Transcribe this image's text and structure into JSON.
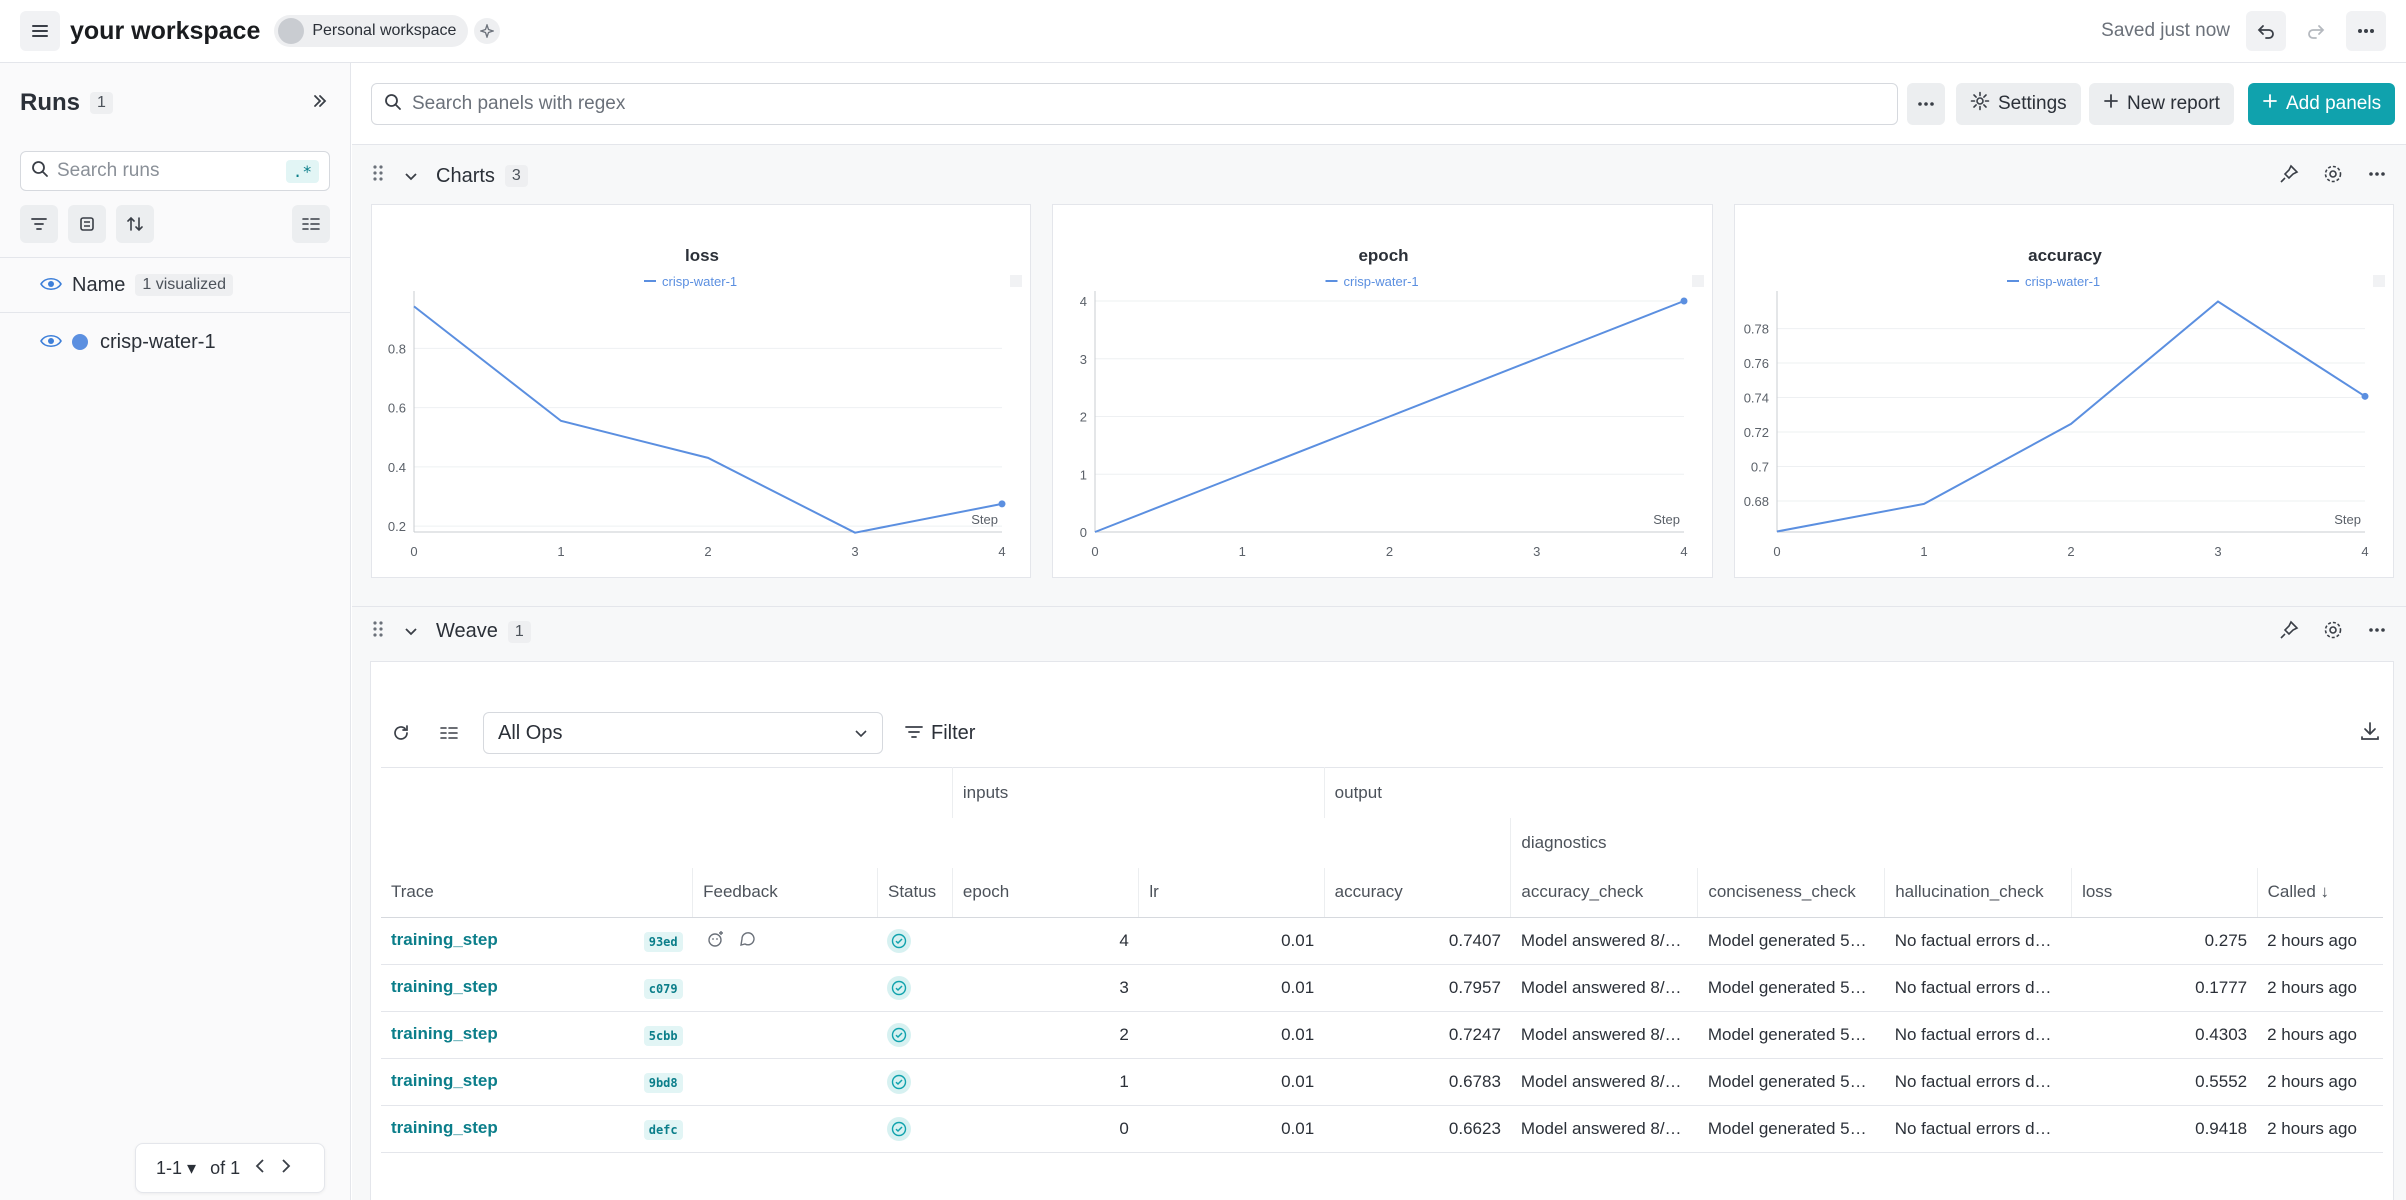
{
  "topbar": {
    "workspace_title": "your workspace",
    "personal_label": "Personal workspace",
    "saved_status": "Saved just now"
  },
  "sidebar": {
    "title": "Runs",
    "run_count": "1",
    "search_placeholder": "Search runs",
    "regex_label": ".*",
    "name_header": "Name",
    "visualized_badge": "1 visualized",
    "runs": [
      {
        "name": "crisp-water-1",
        "color": "#5b8fe0"
      }
    ],
    "pager": {
      "range": "1-1",
      "of": "of 1"
    }
  },
  "toolbar": {
    "search_placeholder": "Search panels with regex",
    "settings_label": "Settings",
    "new_report_label": "New report",
    "add_panels_label": "Add panels"
  },
  "charts_section": {
    "label": "Charts",
    "count": "3"
  },
  "weave_section": {
    "label": "Weave",
    "count": "1"
  },
  "chart_data": [
    {
      "type": "line",
      "title": "loss",
      "xlabel": "Step",
      "series": [
        {
          "name": "crisp-water-1",
          "color": "#5b8fe0",
          "x": [
            0,
            1,
            2,
            3,
            4
          ],
          "values": [
            0.9418,
            0.5552,
            0.4303,
            0.1777,
            0.275
          ]
        }
      ],
      "xlim": [
        0,
        4
      ],
      "ylim": [
        0.18,
        0.96
      ],
      "yticks": [
        0.2,
        0.4,
        0.6,
        0.8
      ],
      "ytick_labels": [
        "0.2",
        "0.4",
        "0.6",
        "0.8"
      ],
      "xticks": [
        "0",
        "1",
        "2",
        "3",
        "4"
      ]
    },
    {
      "type": "line",
      "title": "epoch",
      "xlabel": "Step",
      "series": [
        {
          "name": "crisp-water-1",
          "color": "#5b8fe0",
          "x": [
            0,
            1,
            2,
            3,
            4
          ],
          "values": [
            0,
            1,
            2,
            3,
            4
          ]
        }
      ],
      "xlim": [
        0,
        4
      ],
      "ylim": [
        0,
        4
      ],
      "yticks": [
        0,
        1,
        2,
        3,
        4
      ],
      "ytick_labels": [
        "0",
        "1",
        "2",
        "3",
        "4"
      ],
      "xticks": [
        "0",
        "1",
        "2",
        "3",
        "4"
      ]
    },
    {
      "type": "line",
      "title": "accuracy",
      "xlabel": "Step",
      "series": [
        {
          "name": "crisp-water-1",
          "color": "#5b8fe0",
          "x": [
            0,
            1,
            2,
            3,
            4
          ],
          "values": [
            0.6623,
            0.6783,
            0.7247,
            0.7957,
            0.7407
          ]
        }
      ],
      "xlim": [
        0,
        4
      ],
      "ylim": [
        0.662,
        0.796
      ],
      "yticks": [
        0.68,
        0.7,
        0.72,
        0.74,
        0.76,
        0.78
      ],
      "ytick_labels": [
        "0.68",
        "0.7",
        "0.72",
        "0.74",
        "0.76",
        "0.78"
      ],
      "xticks": [
        "0",
        "1",
        "2",
        "3",
        "4"
      ]
    }
  ],
  "weave": {
    "ops_select": "All Ops",
    "filter_label": "Filter",
    "group_inputs": "inputs",
    "group_output": "output",
    "group_diagnostics": "diagnostics",
    "columns": [
      "Trace",
      "Feedback",
      "Status",
      "epoch",
      "lr",
      "accuracy",
      "accuracy_check",
      "conciseness_check",
      "hallucination_check",
      "loss",
      "Called"
    ],
    "called_sort": "Called ↓",
    "rows": [
      {
        "op": "training_step",
        "id": "93ed",
        "epoch": "4",
        "lr": "0.01",
        "accuracy": "0.7407",
        "accuracy_check": "Model answered 8/…",
        "conciseness_check": "Model generated 5…",
        "hallucination_check": "No factual errors d…",
        "loss": "0.275",
        "called": "2 hours ago"
      },
      {
        "op": "training_step",
        "id": "c079",
        "epoch": "3",
        "lr": "0.01",
        "accuracy": "0.7957",
        "accuracy_check": "Model answered 8/…",
        "conciseness_check": "Model generated 5…",
        "hallucination_check": "No factual errors d…",
        "loss": "0.1777",
        "called": "2 hours ago"
      },
      {
        "op": "training_step",
        "id": "5cbb",
        "epoch": "2",
        "lr": "0.01",
        "accuracy": "0.7247",
        "accuracy_check": "Model answered 8/…",
        "conciseness_check": "Model generated 5…",
        "hallucination_check": "No factual errors d…",
        "loss": "0.4303",
        "called": "2 hours ago"
      },
      {
        "op": "training_step",
        "id": "9bd8",
        "epoch": "1",
        "lr": "0.01",
        "accuracy": "0.6783",
        "accuracy_check": "Model answered 8/…",
        "conciseness_check": "Model generated 5…",
        "hallucination_check": "No factual errors d…",
        "loss": "0.5552",
        "called": "2 hours ago"
      },
      {
        "op": "training_step",
        "id": "defc",
        "epoch": "0",
        "lr": "0.01",
        "accuracy": "0.6623",
        "accuracy_check": "Model answered 8/…",
        "conciseness_check": "Model generated 5…",
        "hallucination_check": "No factual errors d…",
        "loss": "0.9418",
        "called": "2 hours ago"
      }
    ]
  }
}
